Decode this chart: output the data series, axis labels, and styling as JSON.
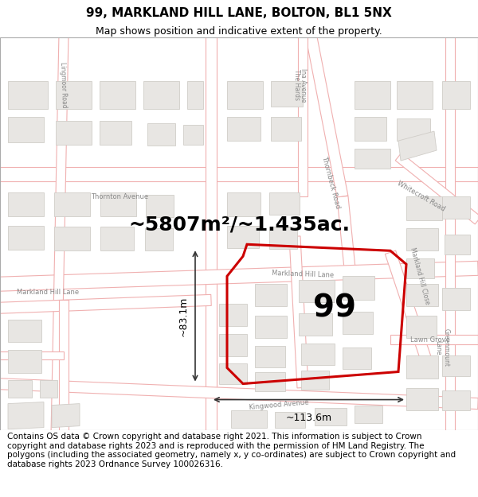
{
  "title": "99, MARKLAND HILL LANE, BOLTON, BL1 5NX",
  "subtitle": "Map shows position and indicative extent of the property.",
  "area_label": "~5807m²/~1.435ac.",
  "property_number": "99",
  "dim_horizontal": "~113.6m",
  "dim_vertical": "~83.1m",
  "map_bg_color": "#f8f8f8",
  "road_line_color": "#f0b0b0",
  "road_center_color": "#ffffff",
  "building_fill": "#e8e6e3",
  "building_edge": "#d0cdc8",
  "property_edge": "#cc0000",
  "property_lw": 2.2,
  "dim_color": "#333333",
  "label_color": "#888888",
  "footer_text": "Contains OS data © Crown copyright and database right 2021. This information is subject to Crown copyright and database rights 2023 and is reproduced with the permission of HM Land Registry. The polygons (including the associated geometry, namely x, y co-ordinates) are subject to Crown copyright and database rights 2023 Ordnance Survey 100026316.",
  "title_fontsize": 11,
  "subtitle_fontsize": 9,
  "area_fontsize": 18,
  "number_fontsize": 28,
  "dim_fontsize": 9,
  "footer_fontsize": 7.5,
  "label_fontsize": 6
}
